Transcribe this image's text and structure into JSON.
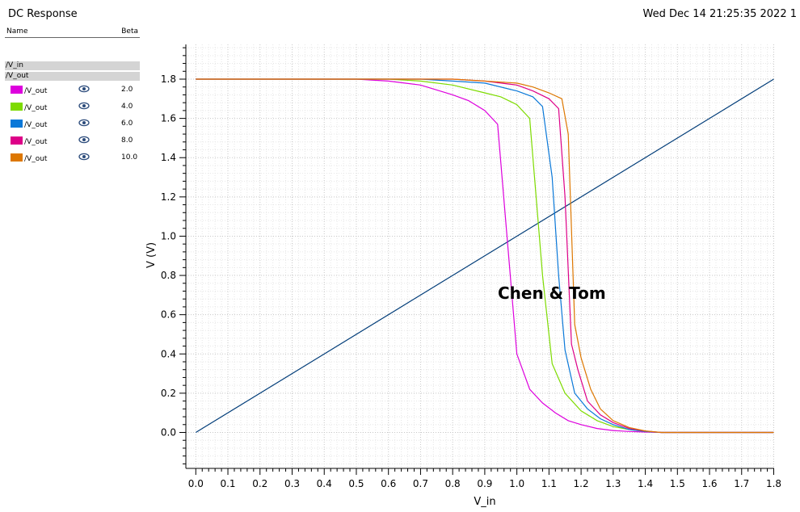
{
  "window": {
    "title": "DC Response",
    "timestamp": "Wed Dec 14 21:25:35 2022  1"
  },
  "legend": {
    "name_header": "Name",
    "beta_header": "Beta",
    "groups": [
      {
        "label": "/V_in"
      },
      {
        "label": "/V_out"
      }
    ],
    "items": [
      {
        "label": "/V_out",
        "beta": "2.0",
        "color": "#dd00dd",
        "icon": "eye-icon"
      },
      {
        "label": "/V_out",
        "beta": "4.0",
        "color": "#7ddb00",
        "icon": "eye-icon"
      },
      {
        "label": "/V_out",
        "beta": "6.0",
        "color": "#0a78d8",
        "icon": "eye-icon"
      },
      {
        "label": "/V_out",
        "beta": "8.0",
        "color": "#dd0088",
        "icon": "eye-icon"
      },
      {
        "label": "/V_out",
        "beta": "10.0",
        "color": "#dd7700",
        "icon": "eye-icon"
      }
    ]
  },
  "annotation": "Chen & Tom",
  "chart_data": {
    "type": "line",
    "xlabel": "V_in",
    "ylabel": "V (V)",
    "xlim": [
      0,
      1.8
    ],
    "ylim": [
      -0.18,
      1.98
    ],
    "grid": true,
    "xticks": [
      "0.0",
      "0.1",
      "0.2",
      "0.3",
      "0.4",
      "0.5",
      "0.6",
      "0.7",
      "0.8",
      "0.9",
      "1.0",
      "1.1",
      "1.2",
      "1.3",
      "1.4",
      "1.5",
      "1.6",
      "1.7",
      "1.8"
    ],
    "yticks": [
      "0.0",
      "0.2",
      "0.4",
      "0.6",
      "0.8",
      "1.0",
      "1.2",
      "1.4",
      "1.6",
      "1.8"
    ],
    "series": [
      {
        "name": "/V_in",
        "color": "#003c78",
        "x": [
          0,
          1.8
        ],
        "y": [
          0,
          1.8
        ]
      },
      {
        "name": "/V_out",
        "beta": "2.0",
        "color": "#dd00dd",
        "x": [
          0,
          0.5,
          0.6,
          0.7,
          0.8,
          0.85,
          0.9,
          0.94,
          1.0,
          1.04,
          1.08,
          1.12,
          1.16,
          1.2,
          1.25,
          1.3,
          1.35,
          1.4,
          1.45,
          1.8
        ],
        "y": [
          1.8,
          1.8,
          1.79,
          1.77,
          1.72,
          1.69,
          1.64,
          1.57,
          0.4,
          0.22,
          0.15,
          0.1,
          0.06,
          0.04,
          0.02,
          0.01,
          0.005,
          0.002,
          0,
          0
        ]
      },
      {
        "name": "/V_out",
        "beta": "4.0",
        "color": "#7ddb00",
        "x": [
          0,
          0.6,
          0.7,
          0.8,
          0.9,
          0.95,
          1.0,
          1.04,
          1.08,
          1.11,
          1.15,
          1.2,
          1.25,
          1.3,
          1.35,
          1.4,
          1.45,
          1.8
        ],
        "y": [
          1.8,
          1.8,
          1.79,
          1.77,
          1.73,
          1.71,
          1.67,
          1.6,
          0.8,
          0.35,
          0.2,
          0.11,
          0.06,
          0.03,
          0.015,
          0.005,
          0,
          0
        ]
      },
      {
        "name": "/V_out",
        "beta": "6.0",
        "color": "#0a78d8",
        "x": [
          0,
          0.7,
          0.8,
          0.9,
          1.0,
          1.05,
          1.08,
          1.11,
          1.13,
          1.15,
          1.18,
          1.22,
          1.26,
          1.3,
          1.35,
          1.4,
          1.45,
          1.8
        ],
        "y": [
          1.8,
          1.8,
          1.79,
          1.78,
          1.74,
          1.71,
          1.66,
          1.3,
          0.8,
          0.42,
          0.2,
          0.12,
          0.07,
          0.04,
          0.015,
          0.005,
          0,
          0
        ]
      },
      {
        "name": "/V_out",
        "beta": "8.0",
        "color": "#dd0088",
        "x": [
          0,
          0.8,
          0.9,
          1.0,
          1.05,
          1.1,
          1.13,
          1.15,
          1.17,
          1.19,
          1.22,
          1.26,
          1.3,
          1.35,
          1.4,
          1.45,
          1.8
        ],
        "y": [
          1.8,
          1.8,
          1.79,
          1.77,
          1.74,
          1.7,
          1.65,
          1.2,
          0.45,
          0.32,
          0.16,
          0.09,
          0.05,
          0.02,
          0.007,
          0,
          0
        ]
      },
      {
        "name": "/V_out",
        "beta": "10.0",
        "color": "#dd7700",
        "x": [
          0,
          0.8,
          0.9,
          1.0,
          1.05,
          1.1,
          1.14,
          1.16,
          1.18,
          1.2,
          1.23,
          1.26,
          1.3,
          1.35,
          1.4,
          1.45,
          1.8
        ],
        "y": [
          1.8,
          1.8,
          1.79,
          1.78,
          1.76,
          1.73,
          1.7,
          1.52,
          0.55,
          0.38,
          0.22,
          0.12,
          0.06,
          0.025,
          0.008,
          0,
          0
        ]
      }
    ]
  }
}
